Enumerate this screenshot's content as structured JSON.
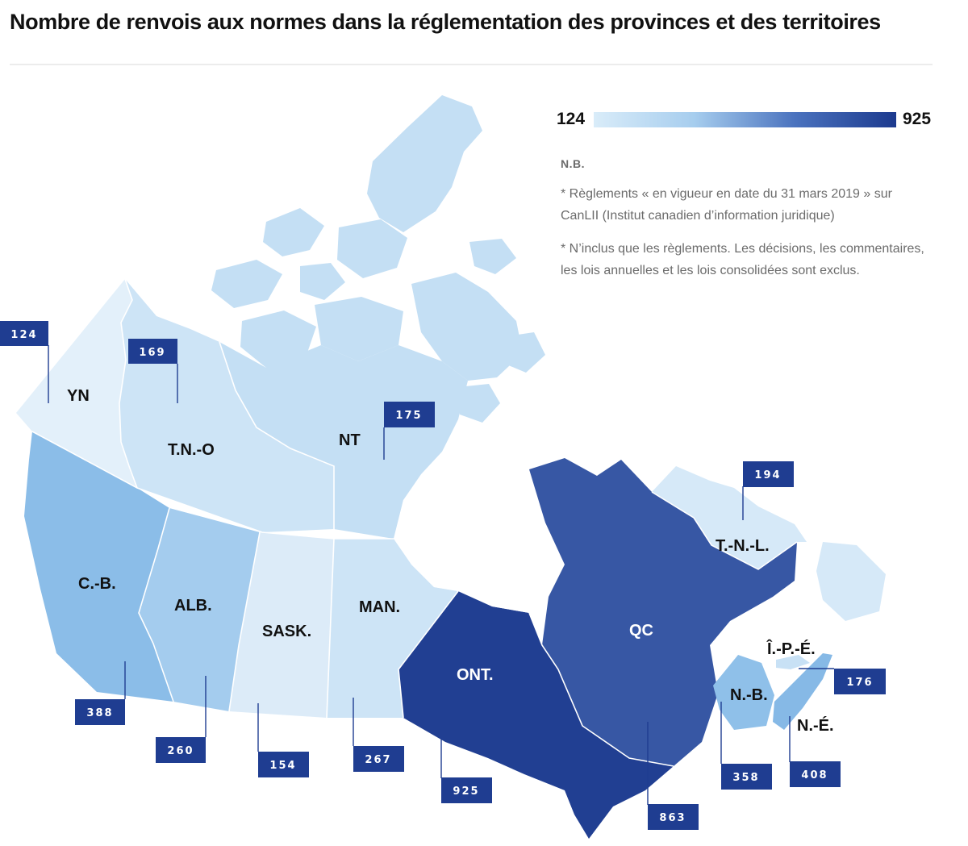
{
  "title": "Nombre de renvois aux normes dans la réglementation des provinces et des territoires",
  "legend": {
    "min": "124",
    "max": "925",
    "colors": [
      "#d9ecf9",
      "#a6cdee",
      "#4a72be",
      "#1c3a8e"
    ]
  },
  "notes": {
    "nb": "N.B.",
    "note1": "* Règlements « en vigueur en date du 31 mars 2019 » sur CanLII (Institut canadien d’information juridique)",
    "note2": "* N’inclus que les règlements. Les décisions, les commentaires, les lois annuelles et les lois consolidées sont exclus."
  },
  "regions": [
    {
      "id": "yn",
      "label": "YN",
      "value": "124",
      "color": "#e3f0fa"
    },
    {
      "id": "tno",
      "label": "T.N.-O",
      "value": "169",
      "color": "#cde4f6"
    },
    {
      "id": "nt",
      "label": "NT",
      "value": "175",
      "color": "#c4dff4"
    },
    {
      "id": "cb",
      "label": "C.-B.",
      "value": "388",
      "color": "#8bbde8"
    },
    {
      "id": "alb",
      "label": "ALB.",
      "value": "260",
      "color": "#a4ccee"
    },
    {
      "id": "sask",
      "label": "SASK.",
      "value": "154",
      "color": "#dcebf8"
    },
    {
      "id": "man",
      "label": "MAN.",
      "value": "267",
      "color": "#cde4f6"
    },
    {
      "id": "ont",
      "label": "ONT.",
      "value": "925",
      "color": "#213f92"
    },
    {
      "id": "qc",
      "label": "QC",
      "value": "863",
      "color": "#3757a4"
    },
    {
      "id": "tnl",
      "label": "T.-N.-L.",
      "value": "194",
      "color": "#d6e9f8"
    },
    {
      "id": "ipe",
      "label": "Î.-P.-É.",
      "value": "176",
      "color": "#c8e1f5"
    },
    {
      "id": "nb",
      "label": "N.-B.",
      "value": "358",
      "color": "#8fc0e9"
    },
    {
      "id": "ne",
      "label": "N.-É.",
      "value": "408",
      "color": "#86b9e6"
    }
  ]
}
